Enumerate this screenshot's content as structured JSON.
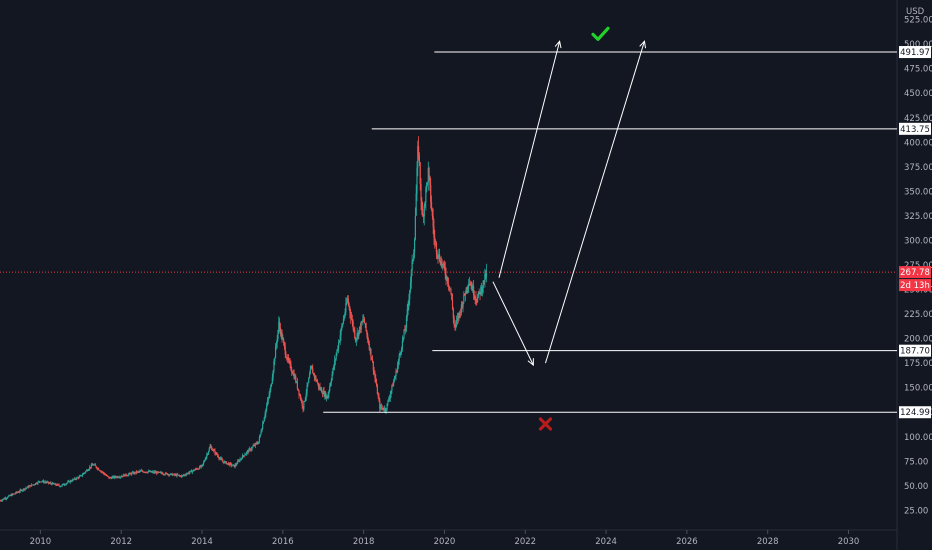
{
  "chart_data": {
    "type": "candlestick",
    "currency": "USD",
    "y_range": [
      5,
      545
    ],
    "x_range": [
      2009.0,
      2031.2
    ],
    "y_ticks": [
      "25.00",
      "50.00",
      "75.00",
      "100.00",
      "125.00",
      "150.00",
      "175.00",
      "200.00",
      "225.00",
      "250.00",
      "275.00",
      "300.00",
      "325.00",
      "350.00",
      "375.00",
      "400.00",
      "425.00",
      "450.00",
      "475.00",
      "500.00",
      "525.00"
    ],
    "x_ticks": [
      "2010",
      "2012",
      "2014",
      "2016",
      "2018",
      "2020",
      "2022",
      "2024",
      "2026",
      "2028",
      "2030"
    ],
    "current_price": {
      "label": "267.78",
      "value": 267.78
    },
    "countdown": "2d 13h",
    "levels": [
      {
        "label": "491.97",
        "value": 491.97,
        "x_start": 2019.75
      },
      {
        "label": "413.75",
        "value": 413.75,
        "x_start": 2018.2
      },
      {
        "label": "187.70",
        "value": 187.7,
        "x_start": 2019.7
      },
      {
        "label": "124.99",
        "value": 124.99,
        "x_start": 2017.0
      }
    ],
    "anchors": [
      [
        2009.0,
        35
      ],
      [
        2009.5,
        45
      ],
      [
        2010.0,
        55
      ],
      [
        2010.5,
        50
      ],
      [
        2011.0,
        60
      ],
      [
        2011.3,
        72
      ],
      [
        2011.7,
        58
      ],
      [
        2012.0,
        60
      ],
      [
        2012.5,
        65
      ],
      [
        2013.0,
        63
      ],
      [
        2013.5,
        60
      ],
      [
        2014.0,
        70
      ],
      [
        2014.2,
        90
      ],
      [
        2014.5,
        75
      ],
      [
        2014.8,
        70
      ],
      [
        2015.0,
        80
      ],
      [
        2015.4,
        95
      ],
      [
        2015.7,
        150
      ],
      [
        2015.9,
        215
      ],
      [
        2016.1,
        180
      ],
      [
        2016.3,
        160
      ],
      [
        2016.5,
        130
      ],
      [
        2016.7,
        170
      ],
      [
        2016.9,
        150
      ],
      [
        2017.1,
        140
      ],
      [
        2017.3,
        180
      ],
      [
        2017.6,
        240
      ],
      [
        2017.8,
        200
      ],
      [
        2018.0,
        220
      ],
      [
        2018.2,
        180
      ],
      [
        2018.4,
        130
      ],
      [
        2018.55,
        128
      ],
      [
        2018.8,
        165
      ],
      [
        2019.05,
        215
      ],
      [
        2019.25,
        295
      ],
      [
        2019.35,
        400
      ],
      [
        2019.45,
        320
      ],
      [
        2019.6,
        370
      ],
      [
        2019.75,
        300
      ],
      [
        2019.85,
        285
      ],
      [
        2020.0,
        270
      ],
      [
        2020.15,
        250
      ],
      [
        2020.25,
        210
      ],
      [
        2020.4,
        230
      ],
      [
        2020.6,
        260
      ],
      [
        2020.8,
        240
      ],
      [
        2020.95,
        255
      ],
      [
        2021.05,
        268
      ]
    ],
    "arrows": [
      {
        "from": [
          2021.35,
          262
        ],
        "to": [
          2022.85,
          503
        ]
      },
      {
        "from": [
          2021.2,
          258
        ],
        "to": [
          2022.2,
          173
        ]
      },
      {
        "from": [
          2022.5,
          175
        ],
        "to": [
          2024.95,
          503
        ]
      }
    ],
    "marks": [
      {
        "type": "check",
        "x": 2023.85,
        "y": 510,
        "color": "#22d02a"
      },
      {
        "type": "cross",
        "x": 2022.5,
        "y": 113,
        "color": "#b71c1c"
      }
    ],
    "colors": {
      "background": "#131722",
      "up": "#26a69a",
      "down": "#ef5350",
      "level_line": "#ffffff",
      "current_line": "#f23645",
      "countdown_badge": "#f23645"
    }
  }
}
